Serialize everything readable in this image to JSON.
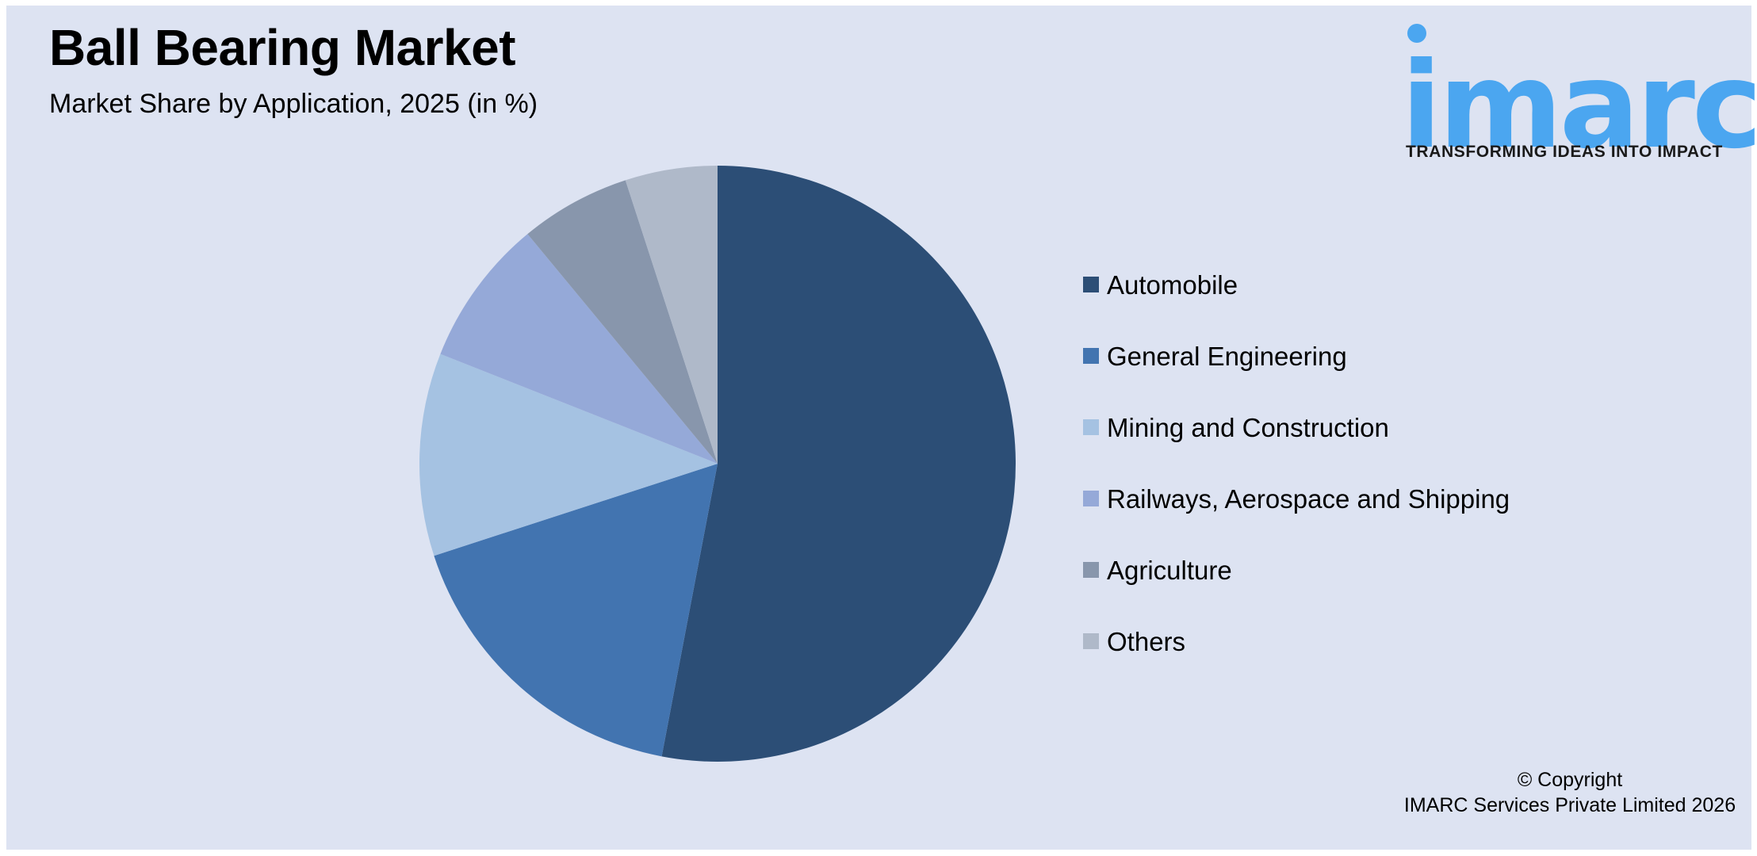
{
  "header": {
    "title": "Ball Bearing Market",
    "subtitle": "Market Share by Application, 2025 (in %)"
  },
  "logo": {
    "wordmark": "imarc",
    "tagline": "TRANSFORMING IDEAS INTO IMPACT",
    "color": "#4BA6F0"
  },
  "footer": {
    "line1": "© Copyright",
    "line2": "IMARC Services Private Limited 2026"
  },
  "colors": {
    "background": "#DDE3F2"
  },
  "chart_data": {
    "type": "pie",
    "title": "Ball Bearing Market",
    "subtitle": "Market Share by Application, 2025 (in %)",
    "categories": [
      "Automobile",
      "General Engineering",
      "Mining and Construction",
      "Railways, Aerospace and Shipping",
      "Agriculture",
      "Others"
    ],
    "values": [
      53,
      17,
      11,
      8,
      6,
      5
    ],
    "colors": [
      "#2C4E76",
      "#4274B0",
      "#A5C2E2",
      "#95A9D8",
      "#8896AC",
      "#AFB9C9"
    ],
    "start_angle_deg": 0,
    "direction": "clockwise",
    "data_labels": false,
    "legend_position": "right",
    "unit": "%"
  }
}
